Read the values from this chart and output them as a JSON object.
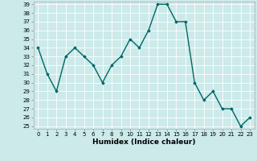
{
  "x": [
    0,
    1,
    2,
    3,
    4,
    5,
    6,
    7,
    8,
    9,
    10,
    11,
    12,
    13,
    14,
    15,
    16,
    17,
    18,
    19,
    20,
    21,
    22,
    23
  ],
  "y": [
    34,
    31,
    29,
    33,
    34,
    33,
    32,
    30,
    32,
    33,
    35,
    34,
    36,
    39,
    39,
    37,
    37,
    30,
    28,
    29,
    27,
    27,
    25,
    26
  ],
  "line_color": "#006666",
  "marker": "D",
  "marker_size": 1.8,
  "bg_color": "#cceaea",
  "grid_color": "#ffffff",
  "xlabel": "Humidex (Indice chaleur)",
  "ylim_min": 25,
  "ylim_max": 39,
  "xlim_min": -0.5,
  "xlim_max": 23.5,
  "yticks": [
    25,
    26,
    27,
    28,
    29,
    30,
    31,
    32,
    33,
    34,
    35,
    36,
    37,
    38,
    39
  ],
  "xticks": [
    0,
    1,
    2,
    3,
    4,
    5,
    6,
    7,
    8,
    9,
    10,
    11,
    12,
    13,
    14,
    15,
    16,
    17,
    18,
    19,
    20,
    21,
    22,
    23
  ],
  "tick_fontsize": 5.0,
  "xlabel_fontsize": 6.5,
  "linewidth": 1.0
}
